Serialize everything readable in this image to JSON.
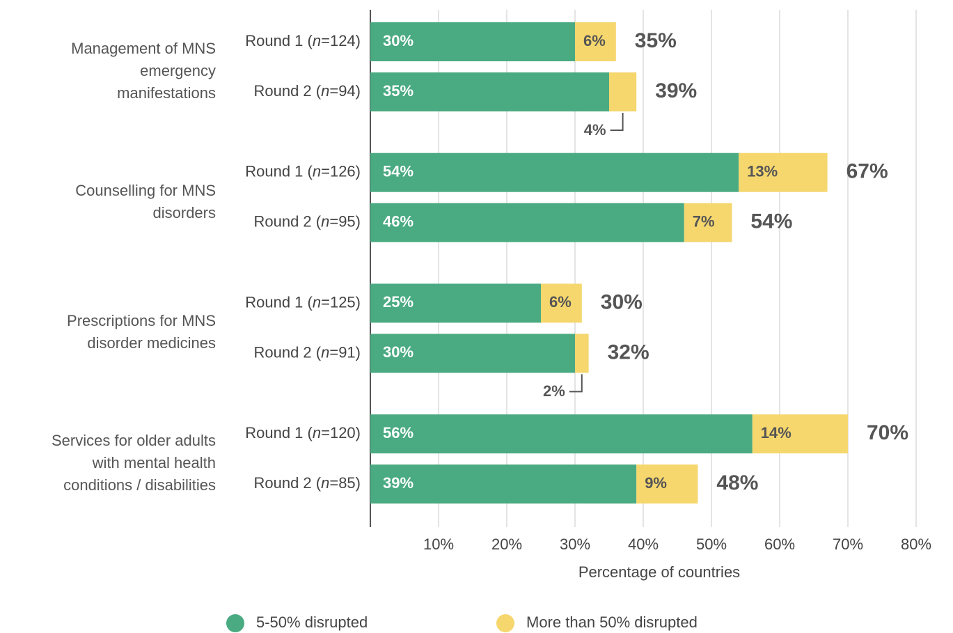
{
  "chart_data": {
    "type": "stacked-bar-horizontal",
    "group_labels": [
      "Management of MNS\nemergency\nmanifestations",
      "Counselling for MNS\ndisorders",
      "Prescriptions for MNS\ndisorder medicines",
      "Services for older adults\nwith mental health\nconditions / disabilities"
    ],
    "categories": [
      "Round 1 (n=124)",
      "Round 2 (n=94)",
      "Round 1 (n=126)",
      "Round 2 (n=95)",
      "Round 1 (n=125)",
      "Round 2 (n=91)",
      "Round 1 (n=120)",
      "Round 2 (n=85)"
    ],
    "series": [
      {
        "name": "5-50% disrupted",
        "color": "#4aaa82",
        "values": [
          30,
          35,
          54,
          46,
          25,
          30,
          56,
          39
        ],
        "value_labels": [
          "30%",
          "35%",
          "54%",
          "46%",
          "25%",
          "30%",
          "56%",
          "39%"
        ]
      },
      {
        "name": "More than 50% disrupted",
        "color": "#f5d76e",
        "values": [
          6,
          4,
          13,
          7,
          6,
          2,
          14,
          9
        ],
        "value_labels": [
          "6%",
          "4%",
          "13%",
          "7%",
          "6%",
          "2%",
          "14%",
          "9%"
        ]
      }
    ],
    "totals": {
      "values": [
        35,
        39,
        67,
        54,
        30,
        32,
        70,
        48
      ],
      "value_labels": [
        "35%",
        "39%",
        "67%",
        "54%",
        "30%",
        "32%",
        "70%",
        "48%"
      ]
    },
    "xlabel": "Percentage of countries",
    "xlim": [
      0,
      80
    ],
    "xticks": [
      {
        "value": 10,
        "label": "10%"
      },
      {
        "value": 20,
        "label": "20%"
      },
      {
        "value": 30,
        "label": "30%"
      },
      {
        "value": 40,
        "label": "40%"
      },
      {
        "value": 50,
        "label": "50%"
      },
      {
        "value": 60,
        "label": "60%"
      },
      {
        "value": 70,
        "label": "70%"
      },
      {
        "value": 80,
        "label": "80%"
      }
    ],
    "grid": true,
    "legend": "bottom"
  }
}
